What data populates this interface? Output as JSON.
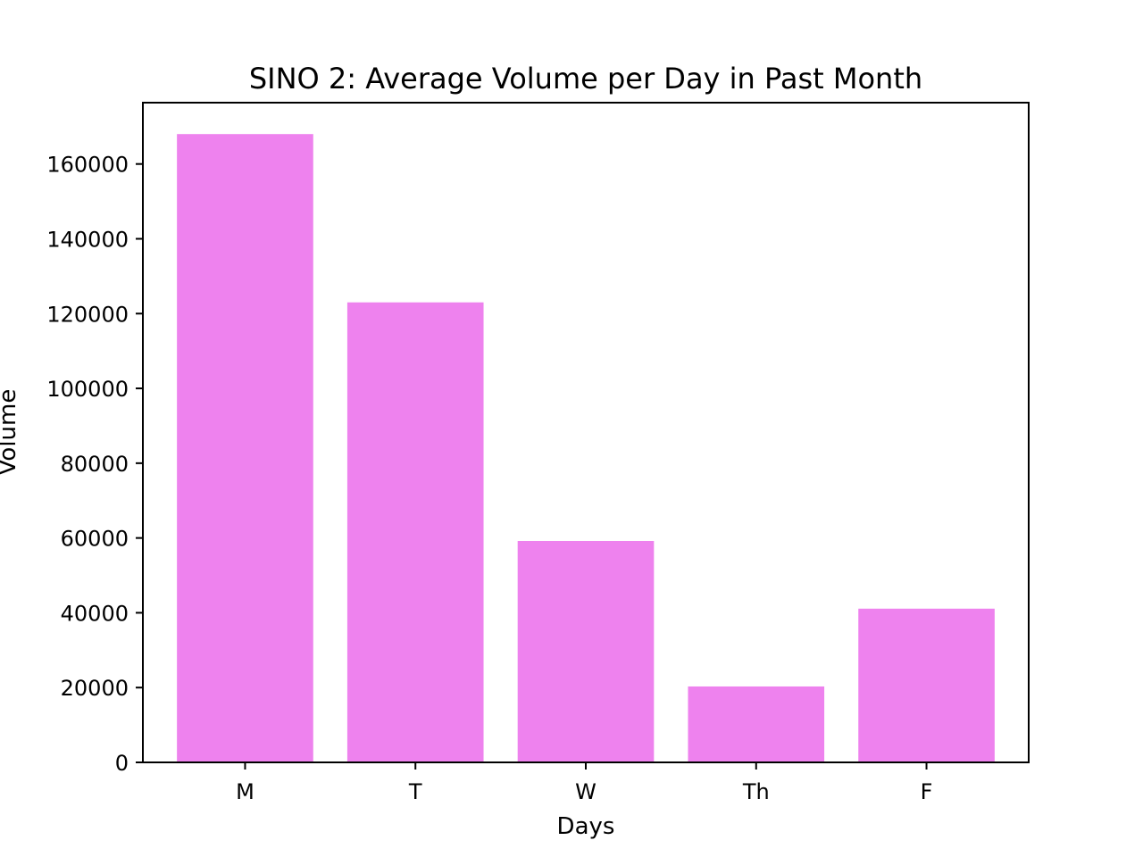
{
  "chart_data": {
    "type": "bar",
    "title": "SINO 2: Average Volume per Day in Past Month",
    "xlabel": "Days",
    "ylabel": "Volume",
    "categories": [
      "M",
      "T",
      "W",
      "Th",
      "F"
    ],
    "values": [
      168000,
      123000,
      59200,
      20300,
      41100
    ],
    "ylim": [
      0,
      176400
    ],
    "yticks": [
      0,
      20000,
      40000,
      60000,
      80000,
      100000,
      120000,
      140000,
      160000
    ],
    "ytick_labels": [
      "0",
      "20000",
      "40000",
      "60000",
      "80000",
      "100000",
      "120000",
      "140000",
      "160000"
    ],
    "grid": false,
    "legend": "none",
    "bar_color": "#ee82ee"
  }
}
